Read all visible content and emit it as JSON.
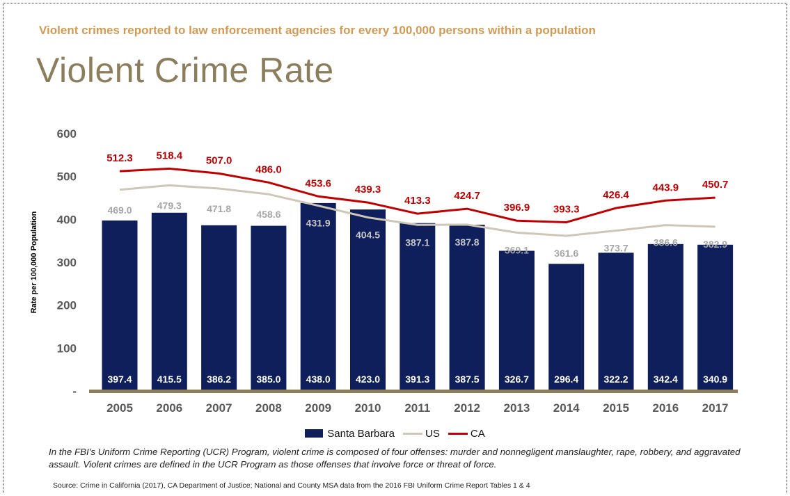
{
  "page": {
    "subtitle": "Violent crimes reported to law enforcement agencies for every 100,000 persons within a population",
    "title": "Violent Crime Rate",
    "footnote": "In the FBI’s Uniform Crime Reporting (UCR) Program, violent crime is composed of four offenses: murder and nonnegligent manslaughter, rape, robbery, and aggravated assault. Violent crimes are defined in the UCR Program as those offenses that involve force or threat of force.",
    "source": "Source: Crime in California (2017), CA Department of Justice; National and County MSA data from the 2016 FBI Uniform Crime Report Tables 1 & 4"
  },
  "colors": {
    "bar": "#0e1f5b",
    "us_line": "#cfc6b6",
    "ca_line": "#c00000",
    "axis": "#8c7d5d",
    "tick_text": "#595959",
    "us_label": "#a6a6a6",
    "bar_label": "#ffffff",
    "subtitle": "#d19a55",
    "title": "#8c7d5d"
  },
  "chart_data": {
    "type": "bar",
    "categories": [
      "2005",
      "2006",
      "2007",
      "2008",
      "2009",
      "2010",
      "2011",
      "2012",
      "2013",
      "2014",
      "2015",
      "2016",
      "2017"
    ],
    "series": [
      {
        "name": "Santa Barbara",
        "kind": "bar",
        "values": [
          397.4,
          415.5,
          386.2,
          385.0,
          438.0,
          423.0,
          391.3,
          387.5,
          326.7,
          296.4,
          322.2,
          342.4,
          340.9
        ]
      },
      {
        "name": "US",
        "kind": "line",
        "values": [
          469.0,
          479.3,
          471.8,
          458.6,
          431.9,
          404.5,
          387.1,
          387.8,
          369.1,
          361.6,
          373.7,
          386.6,
          382.9
        ]
      },
      {
        "name": "CA",
        "kind": "line",
        "values": [
          512.3,
          518.4,
          507.0,
          486.0,
          453.6,
          439.3,
          413.3,
          424.7,
          396.9,
          393.3,
          426.4,
          443.9,
          450.7
        ]
      }
    ],
    "bar_labels": [
      "397.4",
      "415.5",
      "386.2",
      "385.0",
      "438.0",
      "423.0",
      "391.3",
      "387.5",
      "326.7",
      "296.4",
      "322.2",
      "342.4",
      "340.9"
    ],
    "us_labels": [
      "469.0",
      "479.3",
      "471.8",
      "458.6",
      "431.9",
      "404.5",
      "387.1",
      "387.8",
      "369.1",
      "361.6",
      "373.7",
      "386.6",
      "382.9"
    ],
    "ca_labels": [
      "512.3",
      "518.4",
      "507.0",
      "486.0",
      "453.6",
      "439.3",
      "413.3",
      "424.7",
      "396.9",
      "393.3",
      "426.4",
      "443.9",
      "450.7"
    ],
    "ylabel": "Rate per 100,000 Population",
    "ylim": [
      0,
      600
    ],
    "yticks": [
      "-",
      "100",
      "200",
      "300",
      "400",
      "500",
      "600"
    ],
    "grid": false,
    "legend": "bottom"
  }
}
